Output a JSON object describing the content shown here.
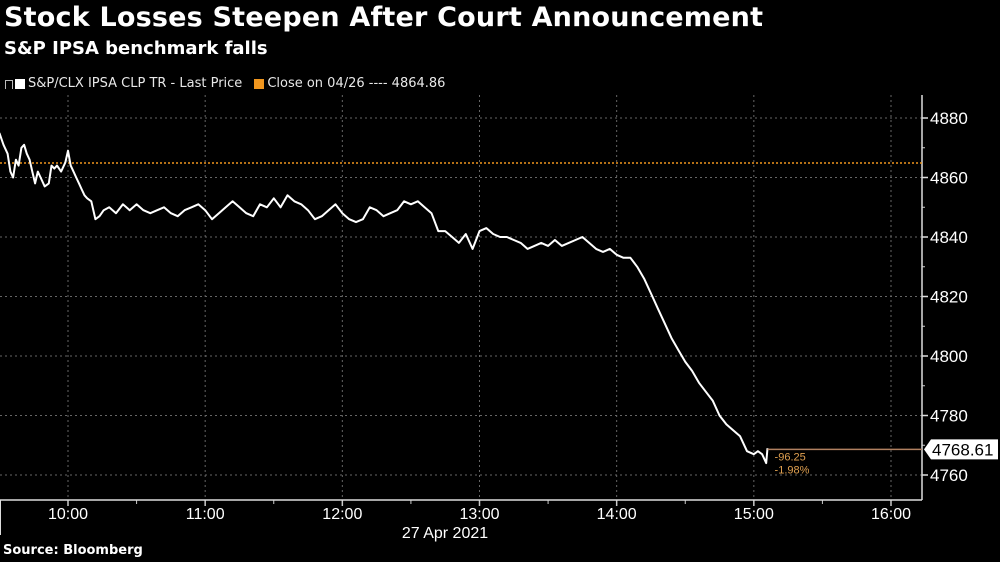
{
  "header": {
    "title": "Stock Losses Steepen After Court Announcement",
    "subtitle": "S&P IPSA benchmark falls"
  },
  "legend": {
    "items": [
      {
        "label": "S&P/CLX IPSA CLP TR - Last Price",
        "color": "#ffffff"
      },
      {
        "label": "Close on 04/26 ---- 4864.86",
        "color": "#f0961e"
      }
    ]
  },
  "annotations": {
    "last_price": "4768.61",
    "change": "-96.25",
    "change_pct": "-1.98%"
  },
  "footer": {
    "source": "Source: Bloomberg"
  },
  "colors": {
    "background": "#000000",
    "line": "#ffffff",
    "reference": "#f0961e",
    "grid": "#666666",
    "annotation": "#e0a050"
  },
  "chart_data": {
    "type": "line",
    "title": "Stock Losses Steepen After Court Announcement",
    "subtitle": "S&P IPSA benchmark falls",
    "xlabel": "27 Apr 2021",
    "ylabel": "",
    "x_ticks": [
      "10:00",
      "11:00",
      "12:00",
      "13:00",
      "14:00",
      "15:00",
      "16:00"
    ],
    "y_ticks": [
      4760,
      4780,
      4800,
      4820,
      4840,
      4860,
      4880
    ],
    "ylim": [
      4756,
      4888
    ],
    "xlim_hours": [
      9.5,
      16.2
    ],
    "grid": true,
    "legend_position": "top-left",
    "reference_line": {
      "label": "Close on 04/26",
      "value": 4864.86
    },
    "last_value": 4768.61,
    "change": -96.25,
    "change_pct": -1.98,
    "series": [
      {
        "name": "S&P/CLX IPSA CLP TR - Last Price",
        "x": [
          9.5,
          9.53,
          9.56,
          9.58,
          9.6,
          9.62,
          9.64,
          9.66,
          9.68,
          9.7,
          9.72,
          9.74,
          9.76,
          9.78,
          9.8,
          9.83,
          9.86,
          9.88,
          9.9,
          9.92,
          9.95,
          9.98,
          10.0,
          10.02,
          10.04,
          10.06,
          10.08,
          10.1,
          10.12,
          10.14,
          10.17,
          10.2,
          10.23,
          10.26,
          10.3,
          10.35,
          10.4,
          10.45,
          10.5,
          10.55,
          10.6,
          10.65,
          10.7,
          10.75,
          10.8,
          10.85,
          10.9,
          10.95,
          11.0,
          11.05,
          11.1,
          11.15,
          11.2,
          11.25,
          11.3,
          11.35,
          11.4,
          11.45,
          11.5,
          11.55,
          11.6,
          11.65,
          11.7,
          11.75,
          11.8,
          11.85,
          11.9,
          11.95,
          12.0,
          12.05,
          12.1,
          12.15,
          12.2,
          12.25,
          12.3,
          12.35,
          12.4,
          12.45,
          12.5,
          12.55,
          12.6,
          12.65,
          12.7,
          12.75,
          12.8,
          12.85,
          12.9,
          12.95,
          13.0,
          13.05,
          13.1,
          13.15,
          13.2,
          13.25,
          13.3,
          13.35,
          13.4,
          13.45,
          13.5,
          13.55,
          13.6,
          13.65,
          13.7,
          13.75,
          13.8,
          13.85,
          13.9,
          13.95,
          14.0,
          14.05,
          14.1,
          14.15,
          14.2,
          14.25,
          14.3,
          14.35,
          14.4,
          14.45,
          14.5,
          14.55,
          14.6,
          14.65,
          14.7,
          14.75,
          14.8,
          14.85,
          14.9,
          14.95,
          15.0,
          15.03,
          15.06,
          15.09,
          15.1
        ],
        "values": [
          4875,
          4871,
          4868,
          4862,
          4860,
          4866,
          4864,
          4870,
          4871,
          4868,
          4866,
          4862,
          4858,
          4862,
          4860,
          4857,
          4858,
          4864,
          4863,
          4864,
          4862,
          4865,
          4869,
          4864,
          4862,
          4860,
          4858,
          4856,
          4854,
          4853,
          4852,
          4846,
          4847,
          4849,
          4850,
          4848,
          4851,
          4849,
          4851,
          4849,
          4848,
          4849,
          4850,
          4848,
          4847,
          4849,
          4850,
          4851,
          4849,
          4846,
          4848,
          4850,
          4852,
          4850,
          4848,
          4847,
          4851,
          4850,
          4853,
          4850,
          4854,
          4852,
          4851,
          4849,
          4846,
          4847,
          4849,
          4851,
          4848,
          4846,
          4845,
          4846,
          4850,
          4849,
          4847,
          4848,
          4849,
          4852,
          4851,
          4852,
          4850,
          4848,
          4842,
          4842,
          4840,
          4838,
          4841,
          4836,
          4842,
          4843,
          4841,
          4840,
          4840,
          4839,
          4838,
          4836,
          4837,
          4838,
          4837,
          4839,
          4837,
          4838,
          4839,
          4840,
          4838,
          4836,
          4835,
          4836,
          4834,
          4833,
          4833,
          4830,
          4826,
          4821,
          4816,
          4811,
          4806,
          4802,
          4798,
          4795,
          4791,
          4788,
          4785,
          4780,
          4777,
          4775,
          4773,
          4768,
          4767,
          4768,
          4767,
          4764,
          4769
        ]
      }
    ]
  }
}
